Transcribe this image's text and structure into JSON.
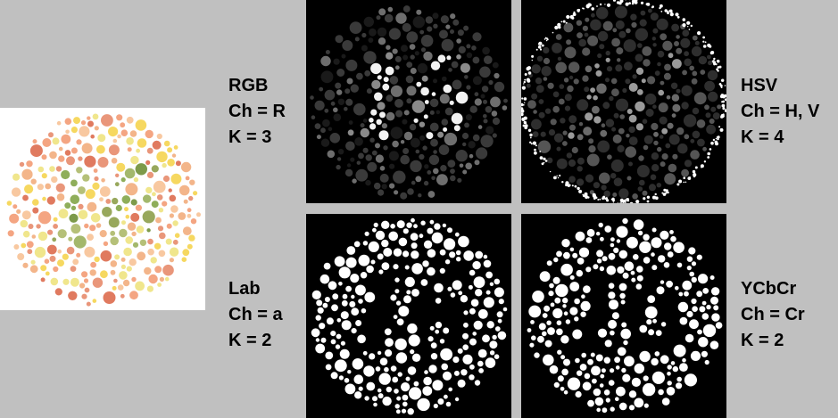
{
  "panels": [
    {
      "id": "rgb",
      "space": "RGB",
      "channel": "Ch = R",
      "k": "K = 3"
    },
    {
      "id": "hsv",
      "space": "HSV",
      "channel": "Ch = H, V",
      "k": "K = 4"
    },
    {
      "id": "lab",
      "space": "Lab",
      "channel": "Ch = a",
      "k": "K = 2"
    },
    {
      "id": "ycc",
      "space": "YCbCr",
      "channel": "Ch = Cr",
      "k": "K = 2"
    }
  ],
  "plate": {
    "digits": "16",
    "colors": {
      "background": [
        "#e9967a",
        "#f4a582",
        "#f8c8a0",
        "#f0e68c",
        "#f6d860",
        "#f3b58a",
        "#e07a5f"
      ],
      "figure": [
        "#8fae5a",
        "#a3b86c",
        "#7d9a4a",
        "#b5c078",
        "#98a85c"
      ]
    }
  },
  "colors": {
    "page_bg": "#c0c0c0",
    "tile_bg": "#000000",
    "label_text": "#000000"
  }
}
